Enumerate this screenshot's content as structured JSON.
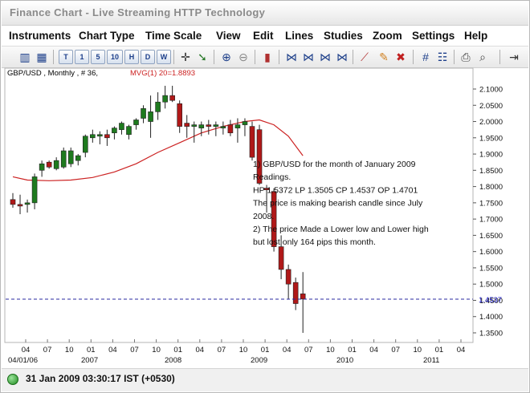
{
  "window": {
    "title": "Finance Chart - Live Streaming HTTP Technology"
  },
  "menu": [
    "Instruments",
    "Chart Type",
    "Time Scale",
    "View",
    "Edit",
    "Lines",
    "Studies",
    "Zoom",
    "Settings",
    "Help"
  ],
  "toolbar": {
    "timeframes": [
      "T",
      "1",
      "5",
      "10",
      "H",
      "D",
      "W"
    ]
  },
  "chart": {
    "header_symbol": "GBP/USD , Monthly , # 36,",
    "header_indicator": "MVG(1) 20=1.8893",
    "current_price_label": "1.4537",
    "y_ticks": [
      "2.1000",
      "2.0500",
      "2.0000",
      "1.9500",
      "1.9000",
      "1.8500",
      "1.8000",
      "1.7500",
      "1.7000",
      "1.6500",
      "1.6000",
      "1.5500",
      "1.5000",
      "1.4500",
      "1.4000",
      "1.3500"
    ],
    "x_months": [
      "04",
      "07",
      "10",
      "01",
      "04",
      "07",
      "10",
      "01",
      "04",
      "07",
      "10",
      "01",
      "04",
      "07",
      "10",
      "01",
      "04",
      "07",
      "10",
      "01",
      "04"
    ],
    "x_years": [
      "04/01/06",
      "2007",
      "2008",
      "2009",
      "2010",
      "2011"
    ],
    "annotation_lines": [
      "1) GBP/USD for the month of January 2009",
      "    Readings.",
      "HP 1.5372 LP 1.3505 CP 1.4537 OP 1.4701",
      "The price is making bearish candle since July",
      "2008.",
      "2) The price Made a Lower low and Lower high",
      "    but lost only 164 pips this month."
    ],
    "colors": {
      "bull": "#1e7a1e",
      "bear": "#b01818",
      "ma": "#cc2222",
      "current": "#2a2aa0"
    }
  },
  "chart_data": {
    "type": "candlestick",
    "title": "GBP/USD , Monthly , # 36,",
    "indicator": "MVG(1) 20=1.8893",
    "ylim": [
      1.33,
      2.135
    ],
    "candles": [
      {
        "date": "2006-04",
        "open": 1.76,
        "high": 1.78,
        "low": 1.735,
        "close": 1.745
      },
      {
        "date": "2006-05",
        "open": 1.745,
        "high": 1.775,
        "low": 1.715,
        "close": 1.74
      },
      {
        "date": "2006-06",
        "open": 1.745,
        "high": 1.76,
        "low": 1.72,
        "close": 1.75
      },
      {
        "date": "2006-07",
        "open": 1.75,
        "high": 1.84,
        "low": 1.73,
        "close": 1.83
      },
      {
        "date": "2006-08",
        "open": 1.85,
        "high": 1.88,
        "low": 1.83,
        "close": 1.87
      },
      {
        "date": "2006-09",
        "open": 1.875,
        "high": 1.88,
        "low": 1.855,
        "close": 1.86
      },
      {
        "date": "2006-10",
        "open": 1.855,
        "high": 1.89,
        "low": 1.85,
        "close": 1.88
      },
      {
        "date": "2006-11",
        "open": 1.86,
        "high": 1.92,
        "low": 1.855,
        "close": 1.91
      },
      {
        "date": "2006-12",
        "open": 1.87,
        "high": 1.92,
        "low": 1.86,
        "close": 1.91
      },
      {
        "date": "2007-01",
        "open": 1.88,
        "high": 1.9,
        "low": 1.865,
        "close": 1.895
      },
      {
        "date": "2007-02",
        "open": 1.905,
        "high": 1.96,
        "low": 1.89,
        "close": 1.955
      },
      {
        "date": "2007-03",
        "open": 1.95,
        "high": 1.975,
        "low": 1.935,
        "close": 1.96
      },
      {
        "date": "2007-04",
        "open": 1.955,
        "high": 1.97,
        "low": 1.93,
        "close": 1.96
      },
      {
        "date": "2007-05",
        "open": 1.96,
        "high": 1.975,
        "low": 1.925,
        "close": 1.95
      },
      {
        "date": "2007-06",
        "open": 1.965,
        "high": 1.985,
        "low": 1.945,
        "close": 1.98
      },
      {
        "date": "2007-07",
        "open": 1.975,
        "high": 2.0,
        "low": 1.96,
        "close": 1.995
      },
      {
        "date": "2007-08",
        "open": 1.96,
        "high": 1.99,
        "low": 1.945,
        "close": 1.985
      },
      {
        "date": "2007-09",
        "open": 1.99,
        "high": 2.01,
        "low": 1.975,
        "close": 2.005
      },
      {
        "date": "2007-10",
        "open": 2.01,
        "high": 2.05,
        "low": 1.995,
        "close": 2.04
      },
      {
        "date": "2007-11",
        "open": 2.0,
        "high": 2.08,
        "low": 1.95,
        "close": 2.03
      },
      {
        "date": "2007-12",
        "open": 2.03,
        "high": 2.09,
        "low": 2.005,
        "close": 2.06
      },
      {
        "date": "2008-01",
        "open": 2.06,
        "high": 2.11,
        "low": 2.04,
        "close": 2.08
      },
      {
        "date": "2008-02",
        "open": 2.08,
        "high": 2.11,
        "low": 2.06,
        "close": 2.065
      },
      {
        "date": "2008-03",
        "open": 2.055,
        "high": 2.065,
        "low": 1.965,
        "close": 1.985
      },
      {
        "date": "2008-04",
        "open": 1.995,
        "high": 2.02,
        "low": 1.95,
        "close": 1.985
      },
      {
        "date": "2008-05",
        "open": 1.985,
        "high": 2.0,
        "low": 1.935,
        "close": 1.99
      },
      {
        "date": "2008-06",
        "open": 1.98,
        "high": 2.0,
        "low": 1.955,
        "close": 1.99
      },
      {
        "date": "2008-07",
        "open": 1.99,
        "high": 2.005,
        "low": 1.96,
        "close": 1.985
      },
      {
        "date": "2008-08",
        "open": 1.985,
        "high": 2.0,
        "low": 1.955,
        "close": 1.99
      },
      {
        "date": "2008-09",
        "open": 1.98,
        "high": 2.0,
        "low": 1.96,
        "close": 1.985
      },
      {
        "date": "2008-10",
        "open": 1.99,
        "high": 2.005,
        "low": 1.955,
        "close": 1.965
      },
      {
        "date": "2008-11",
        "open": 1.98,
        "high": 2.01,
        "low": 1.935,
        "close": 1.99
      },
      {
        "date": "2008-12",
        "open": 1.99,
        "high": 2.01,
        "low": 1.955,
        "close": 2.0
      },
      {
        "date": "2009-01",
        "open": 1.985,
        "high": 2.0,
        "low": 1.88,
        "close": 1.89
      },
      {
        "date": "2009-02",
        "open": 1.975,
        "high": 1.99,
        "low": 1.805,
        "close": 1.81
      },
      {
        "date": "2009-03",
        "open": 1.795,
        "high": 1.805,
        "low": 1.72,
        "close": 1.79
      },
      {
        "date": "2009-04",
        "open": 1.785,
        "high": 1.795,
        "low": 1.6,
        "close": 1.615
      },
      {
        "date": "2009-05",
        "open": 1.615,
        "high": 1.65,
        "low": 1.515,
        "close": 1.545
      },
      {
        "date": "2009-06",
        "open": 1.545,
        "high": 1.56,
        "low": 1.455,
        "close": 1.5
      },
      {
        "date": "2009-07",
        "open": 1.505,
        "high": 1.52,
        "low": 1.42,
        "close": 1.44
      },
      {
        "date": "2009-08",
        "open": 1.47,
        "high": 1.537,
        "low": 1.35,
        "close": 1.454
      }
    ],
    "moving_average_20": [
      {
        "date": "2006-04",
        "value": 1.83
      },
      {
        "date": "2006-06",
        "value": 1.82
      },
      {
        "date": "2006-09",
        "value": 1.818
      },
      {
        "date": "2006-12",
        "value": 1.82
      },
      {
        "date": "2007-03",
        "value": 1.828
      },
      {
        "date": "2007-06",
        "value": 1.845
      },
      {
        "date": "2007-09",
        "value": 1.87
      },
      {
        "date": "2007-12",
        "value": 1.905
      },
      {
        "date": "2008-03",
        "value": 1.935
      },
      {
        "date": "2008-06",
        "value": 1.965
      },
      {
        "date": "2008-09",
        "value": 1.985
      },
      {
        "date": "2008-12",
        "value": 2.0
      },
      {
        "date": "2009-02",
        "value": 2.005
      },
      {
        "date": "2009-04",
        "value": 1.99
      },
      {
        "date": "2009-06",
        "value": 1.955
      },
      {
        "date": "2009-08",
        "value": 1.895
      }
    ],
    "current_price": 1.4537,
    "annotations": [
      "1) GBP/USD for the month of January 2009 Readings.",
      "HP 1.5372 LP 1.3505 CP 1.4537 OP 1.4701",
      "The price is making bearish candle since July 2008.",
      "2) The price Made a Lower low and Lower high but lost only 164 pips this month."
    ],
    "grid": false,
    "y_axis_position": "right"
  },
  "status": {
    "text": "31 Jan 2009 03:30:17  IST (+0530)"
  }
}
